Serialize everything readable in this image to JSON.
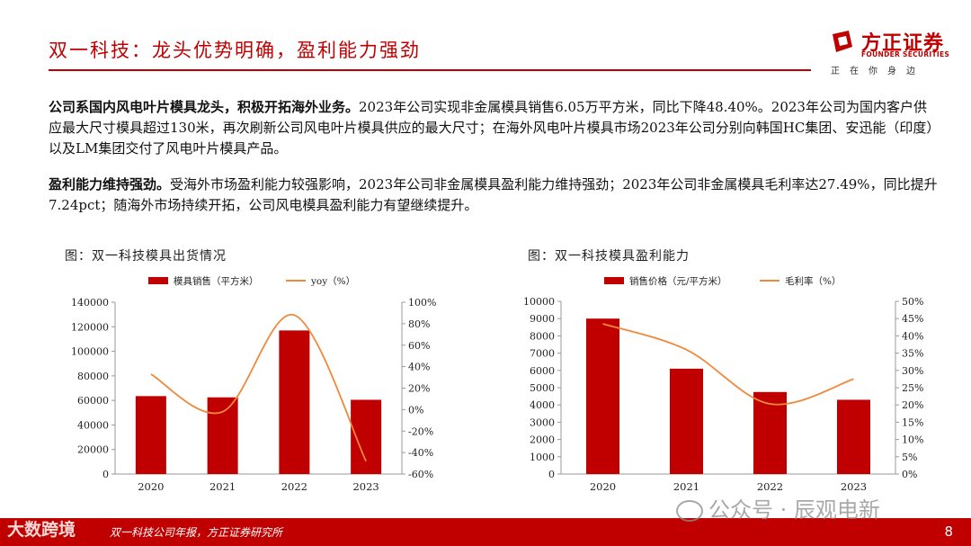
{
  "header": {
    "title": "双一科技：龙头优势明确，盈利能力强劲",
    "logo_cn": "方正证券",
    "logo_en": "FOUNDER SECURITIES",
    "slogan": "正在你身边"
  },
  "paragraphs": [
    {
      "lead": "公司系国内风电叶片模具龙头，积极开拓海外业务。",
      "body": "2023年公司实现非金属模具销售6.05万平方米，同比下降48.40%。2023年公司为国内客户供应最大尺寸模具超过130米，再次刷新公司风电叶片模具供应的最大尺寸；在海外风电叶片模具市场2023年公司分别向韩国HC集团、安迅能（印度）以及LM集团交付了风电叶片模具产品。"
    },
    {
      "lead": "盈利能力维持强劲。",
      "body": "受海外市场盈利能力较强影响，2023年公司非金属模具盈利能力维持强劲；2023年公司非金属模具毛利率达27.49%，同比提升7.24pct；随海外市场持续开拓，公司风电模具盈利能力有望继续提升。"
    }
  ],
  "chart_data": [
    {
      "type": "bar",
      "title": "图：双一科技模具出货情况",
      "categories": [
        "2020",
        "2021",
        "2022",
        "2023"
      ],
      "series": [
        {
          "name": "模具销售（平方米）",
          "type": "bar",
          "axis": "left",
          "color": "#c00000",
          "values": [
            63500,
            62500,
            117000,
            60500
          ]
        },
        {
          "name": "yoy（%）",
          "type": "line",
          "axis": "right",
          "color": "#f0883a",
          "values": [
            33,
            -2,
            88,
            -48
          ]
        }
      ],
      "ylim": [
        0,
        140000
      ],
      "yticks": [
        "0",
        "20000",
        "40000",
        "60000",
        "80000",
        "100000",
        "120000",
        "140000"
      ],
      "y2lim": [
        -60,
        100
      ],
      "y2ticks": [
        "-60%",
        "-40%",
        "-20%",
        "0%",
        "20%",
        "40%",
        "60%",
        "80%",
        "100%"
      ],
      "legend": "top",
      "grid": false
    },
    {
      "type": "bar",
      "title": "图：双一科技模具盈利能力",
      "categories": [
        "2020",
        "2021",
        "2022",
        "2023"
      ],
      "series": [
        {
          "name": "销售价格（元/平方米）",
          "type": "bar",
          "axis": "left",
          "color": "#c00000",
          "values": [
            9000,
            6100,
            4750,
            4300
          ]
        },
        {
          "name": "毛利率（%）",
          "type": "line",
          "axis": "right",
          "color": "#f0883a",
          "values": [
            43.5,
            36,
            20.3,
            27.5
          ]
        }
      ],
      "ylim": [
        0,
        10000
      ],
      "yticks": [
        "0",
        "1000",
        "2000",
        "3000",
        "4000",
        "5000",
        "6000",
        "7000",
        "8000",
        "9000",
        "10000"
      ],
      "y2lim": [
        0,
        50
      ],
      "y2ticks": [
        "0%",
        "5%",
        "10%",
        "15%",
        "20%",
        "25%",
        "30%",
        "35%",
        "40%",
        "45%",
        "50%"
      ],
      "legend": "top",
      "grid": false
    }
  ],
  "footer": {
    "source": "双一科技公司年报，方正证券研究所",
    "page": "8"
  },
  "watermarks": {
    "left": "大数跨境",
    "right": "公众号 · 辰观电新"
  }
}
